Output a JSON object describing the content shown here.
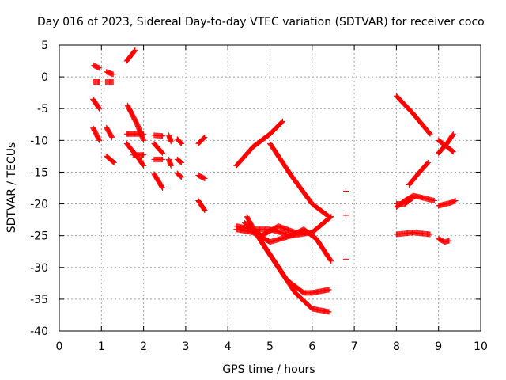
{
  "chart_data": {
    "type": "scatter",
    "title": "Day 016 of 2023, Sidereal Day-to-day VTEC variation (SDTVAR) for receiver coco",
    "xlabel": "GPS time / hours",
    "ylabel": "SDTVAR / TECUs",
    "xlim": [
      0,
      10
    ],
    "ylim": [
      -40,
      5
    ],
    "xticks": [
      0,
      1,
      2,
      3,
      4,
      5,
      6,
      7,
      8,
      9,
      10
    ],
    "yticks": [
      5,
      0,
      -5,
      -10,
      -15,
      -20,
      -25,
      -30,
      -35,
      -40
    ],
    "grid": true,
    "marker": "+",
    "series_color": "#ff0000",
    "series": [
      {
        "name": "s01",
        "points": [
          [
            0.82,
            1.8
          ],
          [
            0.95,
            1.4
          ]
        ]
      },
      {
        "name": "s02",
        "points": [
          [
            0.82,
            -0.8
          ],
          [
            0.95,
            -0.8
          ]
        ]
      },
      {
        "name": "s03",
        "points": [
          [
            0.8,
            -3.5
          ],
          [
            0.95,
            -5.0
          ]
        ]
      },
      {
        "name": "s04",
        "points": [
          [
            0.8,
            -8.0
          ],
          [
            0.95,
            -10.0
          ]
        ]
      },
      {
        "name": "s05",
        "points": [
          [
            1.12,
            0.8
          ],
          [
            1.28,
            0.4
          ]
        ]
      },
      {
        "name": "s06",
        "points": [
          [
            1.1,
            -0.8
          ],
          [
            1.28,
            -0.8
          ]
        ]
      },
      {
        "name": "s07",
        "points": [
          [
            1.12,
            -8.0
          ],
          [
            1.25,
            -9.5
          ]
        ]
      },
      {
        "name": "s08",
        "points": [
          [
            1.12,
            -12.5
          ],
          [
            1.3,
            -13.5
          ]
        ]
      },
      {
        "name": "s09",
        "points": [
          [
            1.6,
            2.5
          ],
          [
            1.8,
            4.2
          ]
        ]
      },
      {
        "name": "s10",
        "points": [
          [
            1.62,
            -4.5
          ],
          [
            1.85,
            -7.5
          ],
          [
            2.0,
            -10.0
          ]
        ]
      },
      {
        "name": "s11",
        "points": [
          [
            1.6,
            -9.0
          ],
          [
            1.9,
            -9.0
          ],
          [
            2.0,
            -9.0
          ]
        ]
      },
      {
        "name": "s12",
        "points": [
          [
            1.6,
            -10.5
          ],
          [
            1.9,
            -13.0
          ],
          [
            2.0,
            -14.0
          ]
        ]
      },
      {
        "name": "s13",
        "points": [
          [
            1.75,
            -12.3
          ],
          [
            2.0,
            -12.3
          ]
        ]
      },
      {
        "name": "s14",
        "points": [
          [
            2.25,
            -9.2
          ],
          [
            2.45,
            -9.3
          ]
        ]
      },
      {
        "name": "s15",
        "points": [
          [
            2.25,
            -10.5
          ],
          [
            2.45,
            -12.0
          ]
        ]
      },
      {
        "name": "s16",
        "points": [
          [
            2.25,
            -13.0
          ],
          [
            2.45,
            -13.0
          ]
        ]
      },
      {
        "name": "s17",
        "points": [
          [
            2.25,
            -15.3
          ],
          [
            2.45,
            -17.5
          ]
        ]
      },
      {
        "name": "s18",
        "points": [
          [
            2.6,
            -9.2
          ],
          [
            2.65,
            -10.2
          ]
        ]
      },
      {
        "name": "s19",
        "points": [
          [
            2.6,
            -13.0
          ],
          [
            2.65,
            -14.0
          ]
        ]
      },
      {
        "name": "s20",
        "points": [
          [
            2.8,
            -9.8
          ],
          [
            2.9,
            -10.5
          ]
        ]
      },
      {
        "name": "s21",
        "points": [
          [
            2.8,
            -13.0
          ],
          [
            2.9,
            -13.5
          ]
        ]
      },
      {
        "name": "s22",
        "points": [
          [
            2.8,
            -15.2
          ],
          [
            2.9,
            -15.8
          ]
        ]
      },
      {
        "name": "s23",
        "points": [
          [
            3.3,
            -10.5
          ],
          [
            3.45,
            -9.5
          ]
        ]
      },
      {
        "name": "s24",
        "points": [
          [
            3.3,
            -15.5
          ],
          [
            3.45,
            -16.0
          ]
        ]
      },
      {
        "name": "s25",
        "points": [
          [
            3.3,
            -19.5
          ],
          [
            3.45,
            -21.0
          ]
        ]
      },
      {
        "name": "s26",
        "points": [
          [
            4.2,
            -14.0
          ],
          [
            4.6,
            -11.0
          ],
          [
            5.0,
            -9.0
          ],
          [
            5.3,
            -7.0
          ]
        ]
      },
      {
        "name": "s27",
        "points": [
          [
            5.0,
            -10.5
          ],
          [
            5.5,
            -15.5
          ],
          [
            6.0,
            -20.0
          ],
          [
            6.4,
            -22.0
          ]
        ]
      },
      {
        "name": "s28",
        "points": [
          [
            4.2,
            -23.5
          ],
          [
            4.6,
            -24.0
          ],
          [
            5.0,
            -24.0
          ],
          [
            5.5,
            -25.0
          ],
          [
            6.0,
            -24.5
          ],
          [
            6.45,
            -22.0
          ]
        ]
      },
      {
        "name": "s29",
        "points": [
          [
            4.2,
            -24.0
          ],
          [
            4.6,
            -24.5
          ],
          [
            5.0,
            -26.0
          ],
          [
            5.5,
            -25.0
          ],
          [
            5.8,
            -24.0
          ],
          [
            6.1,
            -25.5
          ],
          [
            6.45,
            -29.0
          ]
        ]
      },
      {
        "name": "s30",
        "points": [
          [
            4.4,
            -23.0
          ],
          [
            4.8,
            -25.0
          ],
          [
            5.2,
            -23.5
          ],
          [
            5.6,
            -24.5
          ],
          [
            5.9,
            -24.5
          ]
        ]
      },
      {
        "name": "s31",
        "points": [
          [
            4.45,
            -22.0
          ],
          [
            4.7,
            -25.0
          ],
          [
            5.0,
            -28.0
          ],
          [
            5.4,
            -32.0
          ],
          [
            5.8,
            -34.0
          ],
          [
            6.0,
            -34.0
          ],
          [
            6.4,
            -33.5
          ]
        ]
      },
      {
        "name": "s32",
        "points": [
          [
            4.8,
            -26.0
          ],
          [
            5.2,
            -30.0
          ],
          [
            5.6,
            -34.0
          ],
          [
            6.0,
            -36.5
          ],
          [
            6.4,
            -37.0
          ]
        ]
      },
      {
        "name": "s33",
        "points": [
          [
            6.8,
            -18.0
          ]
        ]
      },
      {
        "name": "s34",
        "points": [
          [
            6.8,
            -21.8
          ]
        ]
      },
      {
        "name": "s35",
        "points": [
          [
            6.8,
            -28.7
          ]
        ]
      },
      {
        "name": "s36",
        "points": [
          [
            8.0,
            -3.0
          ],
          [
            8.4,
            -5.8
          ],
          [
            8.8,
            -9.0
          ]
        ]
      },
      {
        "name": "s37",
        "points": [
          [
            8.3,
            -17.0
          ],
          [
            8.55,
            -15.0
          ],
          [
            8.75,
            -13.5
          ]
        ]
      },
      {
        "name": "s38",
        "points": [
          [
            8.0,
            -20.5
          ],
          [
            8.2,
            -19.5
          ],
          [
            8.4,
            -18.7
          ],
          [
            8.6,
            -19.0
          ],
          [
            8.9,
            -19.5
          ]
        ]
      },
      {
        "name": "s39",
        "points": [
          [
            8.0,
            -20.0
          ],
          [
            8.2,
            -20.0
          ],
          [
            8.4,
            -19.0
          ]
        ]
      },
      {
        "name": "s40",
        "points": [
          [
            8.0,
            -24.8
          ],
          [
            8.4,
            -24.5
          ],
          [
            8.8,
            -24.8
          ]
        ]
      },
      {
        "name": "s41",
        "points": [
          [
            9.0,
            -12.0
          ],
          [
            9.2,
            -10.5
          ],
          [
            9.35,
            -9.0
          ]
        ]
      },
      {
        "name": "s42",
        "points": [
          [
            9.0,
            -10.0
          ],
          [
            9.2,
            -11.0
          ],
          [
            9.35,
            -11.8
          ]
        ]
      },
      {
        "name": "s43",
        "points": [
          [
            9.0,
            -20.3
          ],
          [
            9.3,
            -19.8
          ],
          [
            9.4,
            -19.5
          ]
        ]
      },
      {
        "name": "s44",
        "points": [
          [
            9.0,
            -25.5
          ],
          [
            9.15,
            -26.0
          ],
          [
            9.25,
            -25.8
          ]
        ]
      }
    ]
  }
}
